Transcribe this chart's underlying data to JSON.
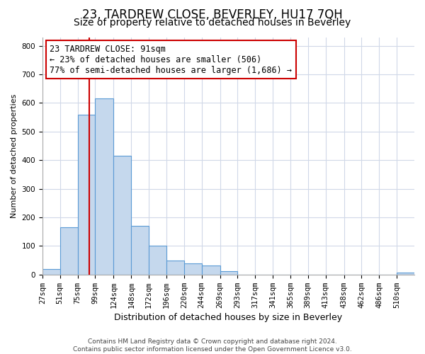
{
  "title": "23, TARDREW CLOSE, BEVERLEY, HU17 7QH",
  "subtitle": "Size of property relative to detached houses in Beverley",
  "xlabel": "Distribution of detached houses by size in Beverley",
  "ylabel": "Number of detached properties",
  "bin_labels": [
    "27sqm",
    "51sqm",
    "75sqm",
    "99sqm",
    "124sqm",
    "148sqm",
    "172sqm",
    "196sqm",
    "220sqm",
    "244sqm",
    "269sqm",
    "293sqm",
    "317sqm",
    "341sqm",
    "365sqm",
    "389sqm",
    "413sqm",
    "438sqm",
    "462sqm",
    "486sqm",
    "510sqm"
  ],
  "bar_heights": [
    20,
    165,
    560,
    615,
    415,
    170,
    100,
    50,
    40,
    33,
    12,
    0,
    0,
    0,
    0,
    0,
    0,
    0,
    0,
    0,
    7
  ],
  "bar_color": "#c5d8ed",
  "bar_edge_color": "#5b9bd5",
  "vline_x": 91,
  "vline_color": "#cc0000",
  "annotation_line1": "23 TARDREW CLOSE: 91sqm",
  "annotation_line2": "← 23% of detached houses are smaller (506)",
  "annotation_line3": "77% of semi-detached houses are larger (1,686) →",
  "annotation_box_color": "#ffffff",
  "annotation_box_edge": "#cc0000",
  "annotation_fontsize": 8.5,
  "footer_line1": "Contains HM Land Registry data © Crown copyright and database right 2024.",
  "footer_line2": "Contains public sector information licensed under the Open Government Licence v3.0.",
  "title_fontsize": 12,
  "subtitle_fontsize": 10,
  "xlabel_fontsize": 9,
  "ylabel_fontsize": 8,
  "tick_fontsize": 7.5,
  "footer_fontsize": 6.5,
  "ylim": [
    0,
    830
  ],
  "background_color": "#ffffff",
  "grid_color": "#d0d8e8",
  "bin_vals": [
    27,
    51,
    75,
    99,
    124,
    148,
    172,
    196,
    220,
    244,
    269,
    293,
    317,
    341,
    365,
    389,
    413,
    438,
    462,
    486,
    510
  ],
  "bar_widths": [
    24,
    24,
    24,
    25,
    24,
    24,
    24,
    24,
    24,
    25,
    24,
    24,
    24,
    24,
    24,
    24,
    25,
    24,
    24,
    24,
    24
  ],
  "xlim_left": 27,
  "xlim_right": 534
}
